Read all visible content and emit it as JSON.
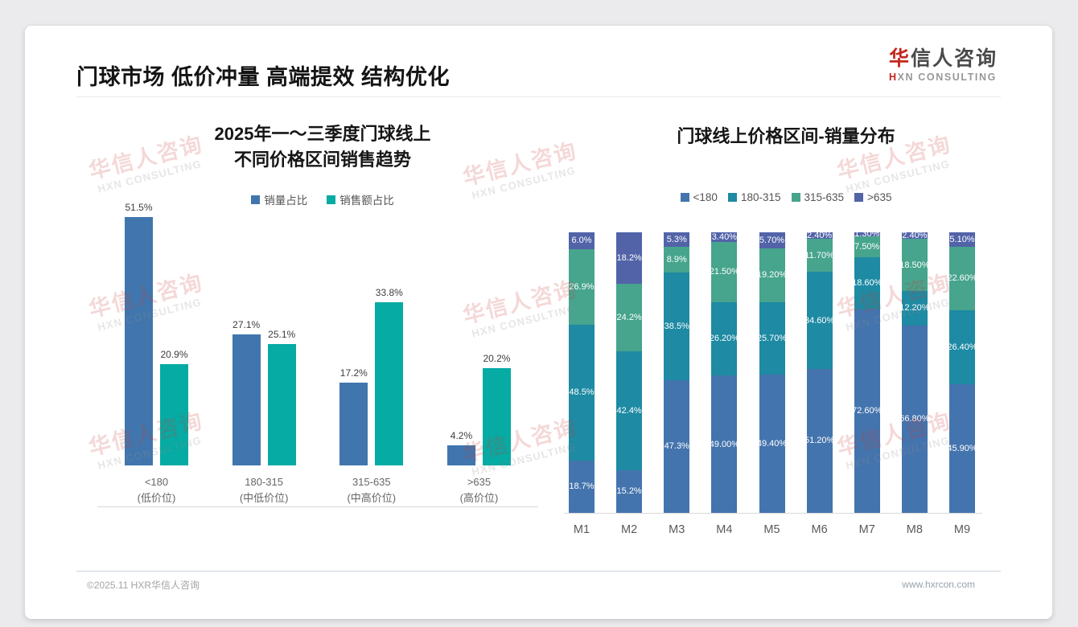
{
  "header": {
    "title": "门球市场 低价冲量 高端提效 结构优化"
  },
  "logo": {
    "cn_first": "华",
    "cn_rest": "信人咨询",
    "en_first": "H",
    "en_rest": "XN CONSULTING"
  },
  "watermark": {
    "line1": "华信人咨询",
    "line2": "HXN CONSULTING"
  },
  "footer": {
    "left": "©2025.11 HXR华信人咨询",
    "right": "www.hxrcon.com"
  },
  "chart_data": [
    {
      "type": "bar",
      "title": "2025年一～三季度门球线上 不同价格区间销售趋势",
      "title_lines": [
        "2025年一～三季度门球线上",
        "不同价格区间销售趋势"
      ],
      "categories": [
        "<180",
        "180-315",
        "315-635",
        ">635"
      ],
      "category_sublabels": [
        "(低价位)",
        "(中低价位)",
        "(中高价位)",
        "(高价位)"
      ],
      "series": [
        {
          "name": "销量占比",
          "color": "#4076AD",
          "values": [
            51.5,
            27.1,
            17.2,
            4.2
          ],
          "labels": [
            "51.5%",
            "27.1%",
            "17.2%",
            "4.2%"
          ]
        },
        {
          "name": "销售额占比",
          "color": "#06ABA3",
          "values": [
            20.9,
            25.1,
            33.8,
            20.2
          ],
          "labels": [
            "20.9%",
            "25.1%",
            "33.8%",
            "20.2%"
          ]
        }
      ],
      "xlabel": "",
      "ylabel": "",
      "ylim": [
        0,
        52
      ],
      "grid": false,
      "legend_position": "top",
      "value_format": "percent"
    },
    {
      "type": "bar",
      "stacked": true,
      "percent_stacked": true,
      "title": "门球线上价格区间-销量分布",
      "categories": [
        "M1",
        "M2",
        "M3",
        "M4",
        "M5",
        "M6",
        "M7",
        "M8",
        "M9"
      ],
      "series": [
        {
          "name": "<180",
          "color": "#4474AD",
          "values": [
            18.7,
            15.2,
            47.3,
            49.0,
            49.4,
            51.2,
            72.6,
            66.8,
            45.9
          ],
          "labels": [
            "18.7%",
            "15.2%",
            "47.3%",
            "49.00%",
            "49.40%",
            "51.20%",
            "72.60%",
            "66.80%",
            "45.90%"
          ]
        },
        {
          "name": "180-315",
          "color": "#1E8AA3",
          "values": [
            48.5,
            42.4,
            38.5,
            26.2,
            25.7,
            34.6,
            18.6,
            12.2,
            26.4
          ],
          "labels": [
            "48.5%",
            "42.4%",
            "38.5%",
            "26.20%",
            "25.70%",
            "34.60%",
            "18.60%",
            "12.20%",
            "26.40%"
          ]
        },
        {
          "name": "315-635",
          "color": "#47A48D",
          "values": [
            26.9,
            24.2,
            8.9,
            21.5,
            19.2,
            11.7,
            7.5,
            18.5,
            22.6
          ],
          "labels": [
            "26.9%",
            "24.2%",
            "8.9%",
            "21.50%",
            "19.20%",
            "11.70%",
            "7.50%",
            "18.50%",
            "22.60%"
          ]
        },
        {
          "name": ">635",
          "color": "#5263A8",
          "values": [
            6.0,
            18.2,
            5.3,
            3.4,
            5.7,
            2.4,
            1.3,
            2.4,
            5.1
          ],
          "labels": [
            "6.0%",
            "18.2%",
            "5.3%",
            "3.40%",
            "5.70%",
            "2.40%",
            "1.30%",
            "2.40%",
            "5.10%"
          ]
        }
      ],
      "xlabel": "",
      "ylabel": "",
      "ylim": [
        0,
        100
      ],
      "grid": false,
      "legend_position": "top"
    }
  ]
}
